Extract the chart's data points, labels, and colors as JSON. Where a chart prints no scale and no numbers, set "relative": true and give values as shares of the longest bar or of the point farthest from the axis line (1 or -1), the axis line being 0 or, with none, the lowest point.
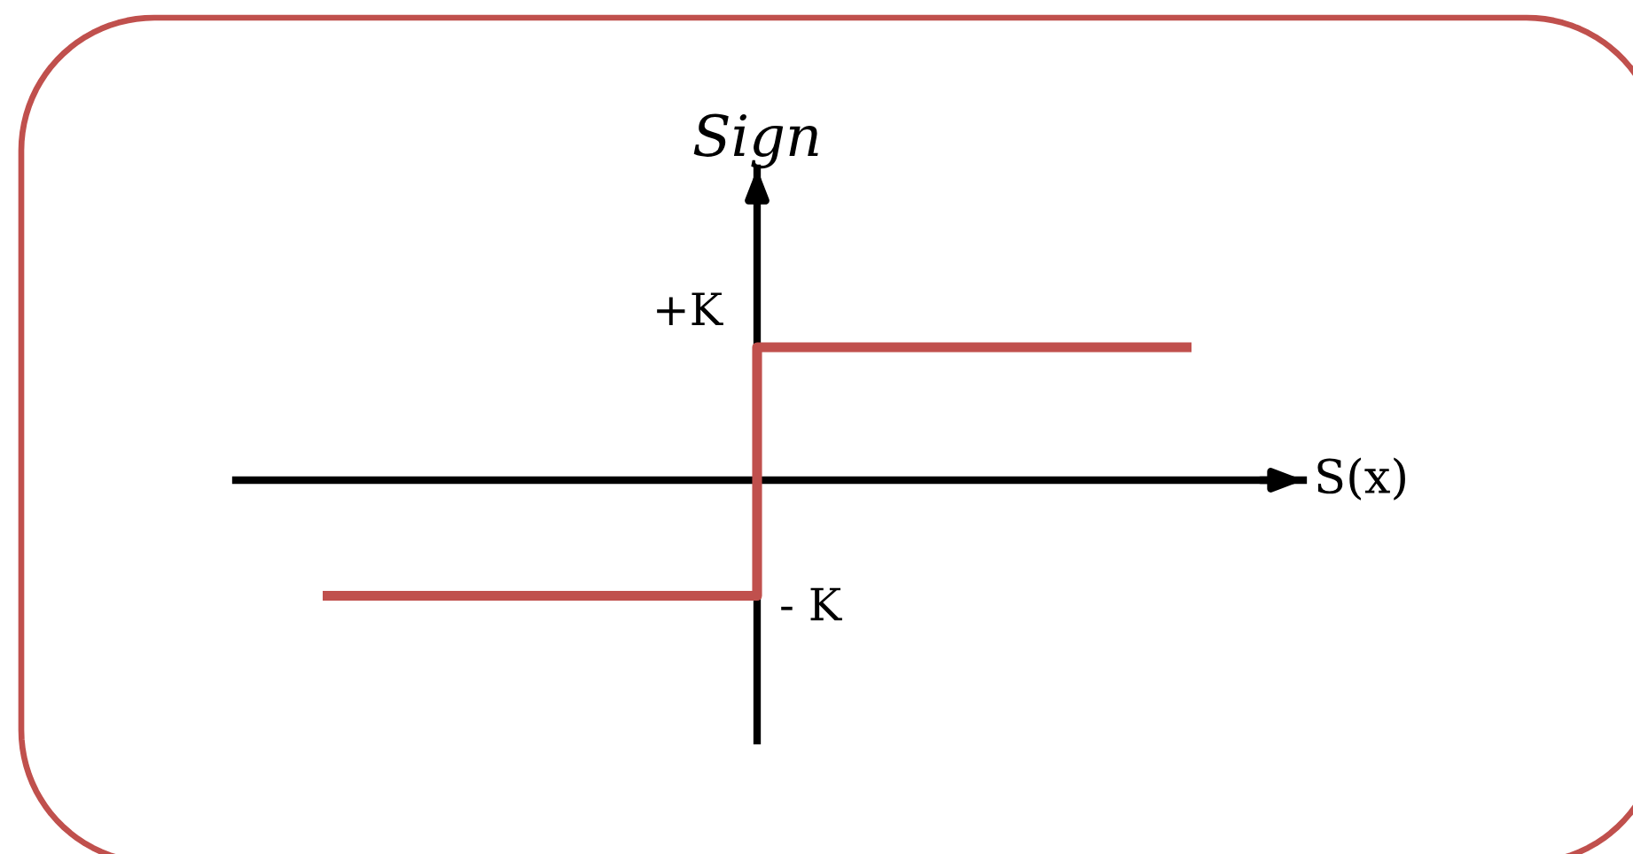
{
  "chart_data": {
    "type": "step",
    "relative": true,
    "xlabel": "S(x)",
    "ylabel": "Sign",
    "categories": [
      null,
      null,
      null
    ],
    "values": [
      -0.87,
      1,
      1
    ],
    "color": "#c0504d",
    "annotations": [
      "+K",
      "- K"
    ]
  }
}
